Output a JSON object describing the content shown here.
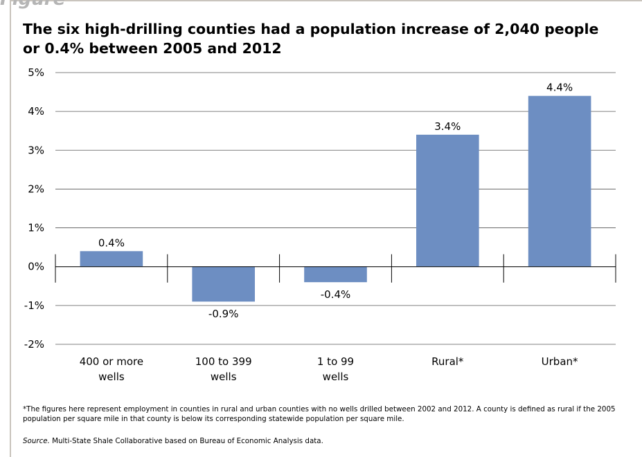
{
  "figure_label": "Figure",
  "title_lines": [
    "The six high-drilling counties had a population increase of 2,040 people",
    "or 0.4% between 2005 and 2012"
  ],
  "chart_data": {
    "type": "bar",
    "title": "The six high-drilling counties had a population increase of 2,040 people or 0.4% between 2005 and 2012",
    "categories": [
      [
        "400 or more",
        "wells"
      ],
      [
        "100 to 399",
        "wells"
      ],
      [
        "1 to 99",
        "wells"
      ],
      [
        "Rural*"
      ],
      [
        "Urban*"
      ]
    ],
    "values": [
      0.4,
      -0.9,
      -0.4,
      3.4,
      4.4
    ],
    "data_labels": [
      "0.4%",
      "-0.9%",
      "-0.4%",
      "3.4%",
      "4.4%"
    ],
    "ylim": [
      -2,
      5
    ],
    "yticks": [
      5,
      4,
      3,
      2,
      1,
      0,
      -1,
      -2
    ],
    "ytick_labels": [
      "5%",
      "4%",
      "3%",
      "2%",
      "1%",
      "0%",
      "-1%",
      "-2%"
    ],
    "bar_color": "#6d8ec2",
    "grid": true,
    "legend": "none"
  },
  "footnote": "*The figures here represent employment in counties in rural and urban counties with no wells drilled between 2002 and 2012.  A county is defined as rural if the 2005 population per square mile in that county is below its corresponding statewide population per square mile.",
  "source": {
    "label": "Source.",
    "text": " Multi-State Shale Collaborative based on Bureau of Economic Analysis data."
  }
}
